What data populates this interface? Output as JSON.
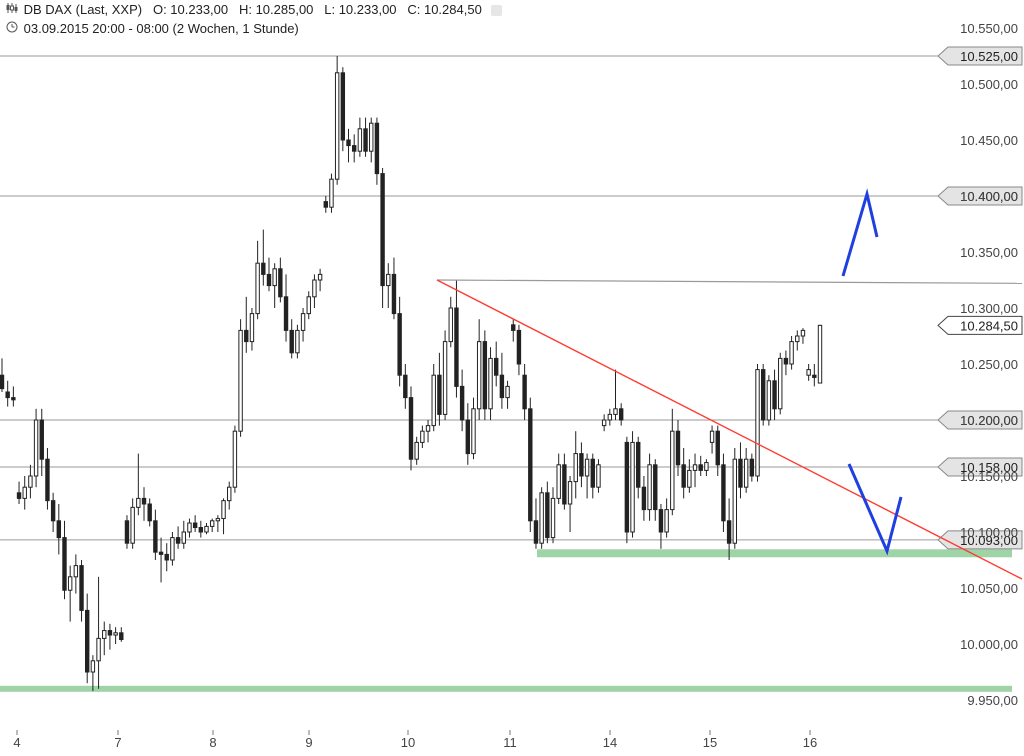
{
  "header": {
    "icon": "candlestick-icon",
    "instrument": "DB DAX (Last, XXP)",
    "ohlc": "O: 10.233,00   H: 10.285,00   L: 10.233,00   C: 10.284,50",
    "period_icon": "clock-icon",
    "period": "03.09.2015 20:00 - 08:00 (2 Wochen, 1 Stunde)"
  },
  "chart_data": {
    "type": "candlestick",
    "ylim": [
      9935,
      10560
    ],
    "y_ticks": [
      9950,
      10000,
      10050,
      10100,
      10150,
      10200,
      10250,
      10300,
      10350,
      10400,
      10450,
      10500,
      10550
    ],
    "y_tick_labels": [
      "9.950,00",
      "10.000,00",
      "10.050,00",
      "10.100,00",
      "10.150,00",
      "10.200,00",
      "10.250,00",
      "10.300,00",
      "10.350,00",
      "10.400,00",
      "10.450,00",
      "10.500,00",
      "10.550,00"
    ],
    "x_labels": [
      "4",
      "7",
      "8",
      "9",
      "10",
      "11",
      "14",
      "15",
      "16"
    ],
    "horizontal_levels": [
      {
        "value": 10525,
        "label": "10.525,00"
      },
      {
        "value": 10400,
        "label": "10.400,00"
      },
      {
        "value": 10200,
        "label": "10.200,00"
      },
      {
        "value": 10158,
        "label": "10.158,00"
      },
      {
        "value": 10093,
        "label": "10.093,00"
      }
    ],
    "last_price": {
      "value": 10284.5,
      "label": "10.284,50"
    },
    "colors": {
      "candle": "#222222",
      "grid_line": "#9a9a9a",
      "trendline": "#ff3b30",
      "support": "#9fd4a6",
      "projection": "#1f3fe0"
    },
    "candles": [
      {
        "o": 10240,
        "h": 10255,
        "l": 10225,
        "c": 10228
      },
      {
        "o": 10225,
        "h": 10235,
        "l": 10212,
        "c": 10220
      },
      {
        "o": 10220,
        "h": 10230,
        "l": 10212,
        "c": 10218
      },
      {
        "o": 10135,
        "h": 10145,
        "l": 10125,
        "c": 10130
      },
      {
        "o": 10130,
        "h": 10150,
        "l": 10120,
        "c": 10140
      },
      {
        "o": 10140,
        "h": 10160,
        "l": 10130,
        "c": 10150
      },
      {
        "o": 10150,
        "h": 10210,
        "l": 10140,
        "c": 10200
      },
      {
        "o": 10200,
        "h": 10210,
        "l": 10150,
        "c": 10165
      },
      {
        "o": 10165,
        "h": 10175,
        "l": 10120,
        "c": 10128
      },
      {
        "o": 10128,
        "h": 10135,
        "l": 10100,
        "c": 10110
      },
      {
        "o": 10110,
        "h": 10125,
        "l": 10080,
        "c": 10095
      },
      {
        "o": 10095,
        "h": 10110,
        "l": 10040,
        "c": 10048
      },
      {
        "o": 10048,
        "h": 10070,
        "l": 10020,
        "c": 10060
      },
      {
        "o": 10060,
        "h": 10080,
        "l": 10045,
        "c": 10070
      },
      {
        "o": 10070,
        "h": 10075,
        "l": 10020,
        "c": 10030
      },
      {
        "o": 10030,
        "h": 10045,
        "l": 9965,
        "c": 9975
      },
      {
        "o": 9975,
        "h": 9990,
        "l": 9958,
        "c": 9985
      },
      {
        "o": 9985,
        "h": 10060,
        "l": 9960,
        "c": 10005
      },
      {
        "o": 10005,
        "h": 10020,
        "l": 9990,
        "c": 10012
      },
      {
        "o": 10012,
        "h": 10018,
        "l": 9995,
        "c": 10008
      },
      {
        "o": 10008,
        "h": 10015,
        "l": 10000,
        "c": 10010
      },
      {
        "o": 10010,
        "h": 10015,
        "l": 10002,
        "c": 10004
      },
      {
        "o": 10110,
        "h": 10115,
        "l": 10085,
        "c": 10090
      },
      {
        "o": 10090,
        "h": 10130,
        "l": 10085,
        "c": 10122
      },
      {
        "o": 10122,
        "h": 10170,
        "l": 10115,
        "c": 10130
      },
      {
        "o": 10130,
        "h": 10140,
        "l": 10110,
        "c": 10125
      },
      {
        "o": 10125,
        "h": 10130,
        "l": 10105,
        "c": 10110
      },
      {
        "o": 10110,
        "h": 10120,
        "l": 10075,
        "c": 10082
      },
      {
        "o": 10082,
        "h": 10095,
        "l": 10055,
        "c": 10080
      },
      {
        "o": 10080,
        "h": 10090,
        "l": 10065,
        "c": 10075
      },
      {
        "o": 10075,
        "h": 10100,
        "l": 10070,
        "c": 10095
      },
      {
        "o": 10095,
        "h": 10105,
        "l": 10085,
        "c": 10090
      },
      {
        "o": 10090,
        "h": 10110,
        "l": 10085,
        "c": 10100
      },
      {
        "o": 10100,
        "h": 10112,
        "l": 10095,
        "c": 10108
      },
      {
        "o": 10108,
        "h": 10115,
        "l": 10100,
        "c": 10104
      },
      {
        "o": 10104,
        "h": 10110,
        "l": 10095,
        "c": 10100
      },
      {
        "o": 10100,
        "h": 10108,
        "l": 10098,
        "c": 10105
      },
      {
        "o": 10105,
        "h": 10112,
        "l": 10100,
        "c": 10110
      },
      {
        "o": 10110,
        "h": 10115,
        "l": 10100,
        "c": 10112
      },
      {
        "o": 10112,
        "h": 10130,
        "l": 10098,
        "c": 10128
      },
      {
        "o": 10128,
        "h": 10145,
        "l": 10120,
        "c": 10140
      },
      {
        "o": 10140,
        "h": 10195,
        "l": 10135,
        "c": 10190
      },
      {
        "o": 10190,
        "h": 10290,
        "l": 10185,
        "c": 10280
      },
      {
        "o": 10280,
        "h": 10310,
        "l": 10260,
        "c": 10270
      },
      {
        "o": 10270,
        "h": 10300,
        "l": 10262,
        "c": 10295
      },
      {
        "o": 10295,
        "h": 10360,
        "l": 10290,
        "c": 10340
      },
      {
        "o": 10340,
        "h": 10370,
        "l": 10320,
        "c": 10330
      },
      {
        "o": 10330,
        "h": 10345,
        "l": 10315,
        "c": 10320
      },
      {
        "o": 10320,
        "h": 10340,
        "l": 10300,
        "c": 10335
      },
      {
        "o": 10335,
        "h": 10345,
        "l": 10305,
        "c": 10310
      },
      {
        "o": 10310,
        "h": 10330,
        "l": 10270,
        "c": 10280
      },
      {
        "o": 10280,
        "h": 10290,
        "l": 10255,
        "c": 10260
      },
      {
        "o": 10260,
        "h": 10285,
        "l": 10255,
        "c": 10280
      },
      {
        "o": 10280,
        "h": 10300,
        "l": 10270,
        "c": 10295
      },
      {
        "o": 10295,
        "h": 10315,
        "l": 10290,
        "c": 10310
      },
      {
        "o": 10310,
        "h": 10330,
        "l": 10300,
        "c": 10325
      },
      {
        "o": 10325,
        "h": 10335,
        "l": 10315,
        "c": 10330
      },
      {
        "o": 10395,
        "h": 10400,
        "l": 10385,
        "c": 10390
      },
      {
        "o": 10390,
        "h": 10420,
        "l": 10385,
        "c": 10415
      },
      {
        "o": 10415,
        "h": 10525,
        "l": 10410,
        "c": 10510
      },
      {
        "o": 10510,
        "h": 10515,
        "l": 10440,
        "c": 10450
      },
      {
        "o": 10450,
        "h": 10460,
        "l": 10430,
        "c": 10445
      },
      {
        "o": 10445,
        "h": 10455,
        "l": 10430,
        "c": 10440
      },
      {
        "o": 10440,
        "h": 10470,
        "l": 10435,
        "c": 10460
      },
      {
        "o": 10460,
        "h": 10470,
        "l": 10435,
        "c": 10440
      },
      {
        "o": 10440,
        "h": 10470,
        "l": 10430,
        "c": 10465
      },
      {
        "o": 10465,
        "h": 10470,
        "l": 10410,
        "c": 10420
      },
      {
        "o": 10420,
        "h": 10425,
        "l": 10300,
        "c": 10320
      },
      {
        "o": 10320,
        "h": 10340,
        "l": 10300,
        "c": 10330
      },
      {
        "o": 10330,
        "h": 10345,
        "l": 10290,
        "c": 10295
      },
      {
        "o": 10295,
        "h": 10310,
        "l": 10230,
        "c": 10240
      },
      {
        "o": 10240,
        "h": 10250,
        "l": 10210,
        "c": 10220
      },
      {
        "o": 10220,
        "h": 10230,
        "l": 10155,
        "c": 10165
      },
      {
        "o": 10165,
        "h": 10185,
        "l": 10160,
        "c": 10180
      },
      {
        "o": 10180,
        "h": 10195,
        "l": 10175,
        "c": 10190
      },
      {
        "o": 10190,
        "h": 10200,
        "l": 10180,
        "c": 10195
      },
      {
        "o": 10195,
        "h": 10250,
        "l": 10190,
        "c": 10240
      },
      {
        "o": 10240,
        "h": 10260,
        "l": 10195,
        "c": 10205
      },
      {
        "o": 10205,
        "h": 10280,
        "l": 10200,
        "c": 10270
      },
      {
        "o": 10270,
        "h": 10310,
        "l": 10265,
        "c": 10300
      },
      {
        "o": 10300,
        "h": 10325,
        "l": 10220,
        "c": 10230
      },
      {
        "o": 10230,
        "h": 10245,
        "l": 10190,
        "c": 10200
      },
      {
        "o": 10200,
        "h": 10215,
        "l": 10160,
        "c": 10170
      },
      {
        "o": 10170,
        "h": 10220,
        "l": 10165,
        "c": 10210
      },
      {
        "o": 10210,
        "h": 10290,
        "l": 10200,
        "c": 10270
      },
      {
        "o": 10270,
        "h": 10280,
        "l": 10200,
        "c": 10210
      },
      {
        "o": 10210,
        "h": 10265,
        "l": 10200,
        "c": 10255
      },
      {
        "o": 10255,
        "h": 10270,
        "l": 10230,
        "c": 10240
      },
      {
        "o": 10240,
        "h": 10260,
        "l": 10210,
        "c": 10220
      },
      {
        "o": 10220,
        "h": 10235,
        "l": 10210,
        "c": 10230
      },
      {
        "o": 10285,
        "h": 10290,
        "l": 10270,
        "c": 10280
      },
      {
        "o": 10280,
        "h": 10285,
        "l": 10240,
        "c": 10250
      },
      {
        "o": 10240,
        "h": 10250,
        "l": 10200,
        "c": 10210
      },
      {
        "o": 10210,
        "h": 10220,
        "l": 10100,
        "c": 10110
      },
      {
        "o": 10110,
        "h": 10130,
        "l": 10085,
        "c": 10090
      },
      {
        "o": 10090,
        "h": 10140,
        "l": 10085,
        "c": 10135
      },
      {
        "o": 10135,
        "h": 10145,
        "l": 10090,
        "c": 10095
      },
      {
        "o": 10095,
        "h": 10140,
        "l": 10090,
        "c": 10130
      },
      {
        "o": 10130,
        "h": 10170,
        "l": 10125,
        "c": 10160
      },
      {
        "o": 10160,
        "h": 10170,
        "l": 10120,
        "c": 10125
      },
      {
        "o": 10125,
        "h": 10150,
        "l": 10100,
        "c": 10145
      },
      {
        "o": 10145,
        "h": 10190,
        "l": 10130,
        "c": 10170
      },
      {
        "o": 10170,
        "h": 10180,
        "l": 10140,
        "c": 10150
      },
      {
        "o": 10150,
        "h": 10170,
        "l": 10130,
        "c": 10165
      },
      {
        "o": 10165,
        "h": 10170,
        "l": 10130,
        "c": 10140
      },
      {
        "o": 10140,
        "h": 10165,
        "l": 10135,
        "c": 10160
      },
      {
        "o": 10195,
        "h": 10205,
        "l": 10190,
        "c": 10200
      },
      {
        "o": 10200,
        "h": 10210,
        "l": 10195,
        "c": 10205
      },
      {
        "o": 10205,
        "h": 10245,
        "l": 10200,
        "c": 10210
      },
      {
        "o": 10210,
        "h": 10215,
        "l": 10195,
        "c": 10200
      },
      {
        "o": 10180,
        "h": 10185,
        "l": 10090,
        "c": 10100
      },
      {
        "o": 10100,
        "h": 10190,
        "l": 10095,
        "c": 10180
      },
      {
        "o": 10180,
        "h": 10185,
        "l": 10130,
        "c": 10140
      },
      {
        "o": 10140,
        "h": 10150,
        "l": 10110,
        "c": 10120
      },
      {
        "o": 10120,
        "h": 10170,
        "l": 10110,
        "c": 10160
      },
      {
        "o": 10160,
        "h": 10165,
        "l": 10110,
        "c": 10120
      },
      {
        "o": 10120,
        "h": 10125,
        "l": 10085,
        "c": 10100
      },
      {
        "o": 10100,
        "h": 10130,
        "l": 10095,
        "c": 10120
      },
      {
        "o": 10120,
        "h": 10210,
        "l": 10115,
        "c": 10190
      },
      {
        "o": 10190,
        "h": 10200,
        "l": 10150,
        "c": 10160
      },
      {
        "o": 10160,
        "h": 10175,
        "l": 10130,
        "c": 10140
      },
      {
        "o": 10140,
        "h": 10165,
        "l": 10135,
        "c": 10155
      },
      {
        "o": 10155,
        "h": 10170,
        "l": 10140,
        "c": 10160
      },
      {
        "o": 10160,
        "h": 10168,
        "l": 10150,
        "c": 10155
      },
      {
        "o": 10155,
        "h": 10165,
        "l": 10150,
        "c": 10162
      },
      {
        "o": 10180,
        "h": 10195,
        "l": 10170,
        "c": 10190
      },
      {
        "o": 10190,
        "h": 10195,
        "l": 10150,
        "c": 10160
      },
      {
        "o": 10160,
        "h": 10170,
        "l": 10100,
        "c": 10110
      },
      {
        "o": 10110,
        "h": 10130,
        "l": 10075,
        "c": 10090
      },
      {
        "o": 10090,
        "h": 10175,
        "l": 10085,
        "c": 10165
      },
      {
        "o": 10165,
        "h": 10180,
        "l": 10130,
        "c": 10140
      },
      {
        "o": 10140,
        "h": 10175,
        "l": 10135,
        "c": 10165
      },
      {
        "o": 10165,
        "h": 10170,
        "l": 10145,
        "c": 10150
      },
      {
        "o": 10150,
        "h": 10250,
        "l": 10145,
        "c": 10245
      },
      {
        "o": 10245,
        "h": 10250,
        "l": 10195,
        "c": 10200
      },
      {
        "o": 10200,
        "h": 10240,
        "l": 10195,
        "c": 10235
      },
      {
        "o": 10235,
        "h": 10245,
        "l": 10200,
        "c": 10210
      },
      {
        "o": 10210,
        "h": 10260,
        "l": 10205,
        "c": 10255
      },
      {
        "o": 10255,
        "h": 10262,
        "l": 10240,
        "c": 10250
      },
      {
        "o": 10250,
        "h": 10275,
        "l": 10245,
        "c": 10270
      },
      {
        "o": 10270,
        "h": 10280,
        "l": 10262,
        "c": 10275
      },
      {
        "o": 10275,
        "h": 10282,
        "l": 10268,
        "c": 10280
      },
      {
        "o": 10240,
        "h": 10250,
        "l": 10235,
        "c": 10245
      },
      {
        "o": 10240,
        "h": 10250,
        "l": 10230,
        "c": 10238
      },
      {
        "o": 10233,
        "h": 10285,
        "l": 10233,
        "c": 10284.5
      }
    ]
  }
}
